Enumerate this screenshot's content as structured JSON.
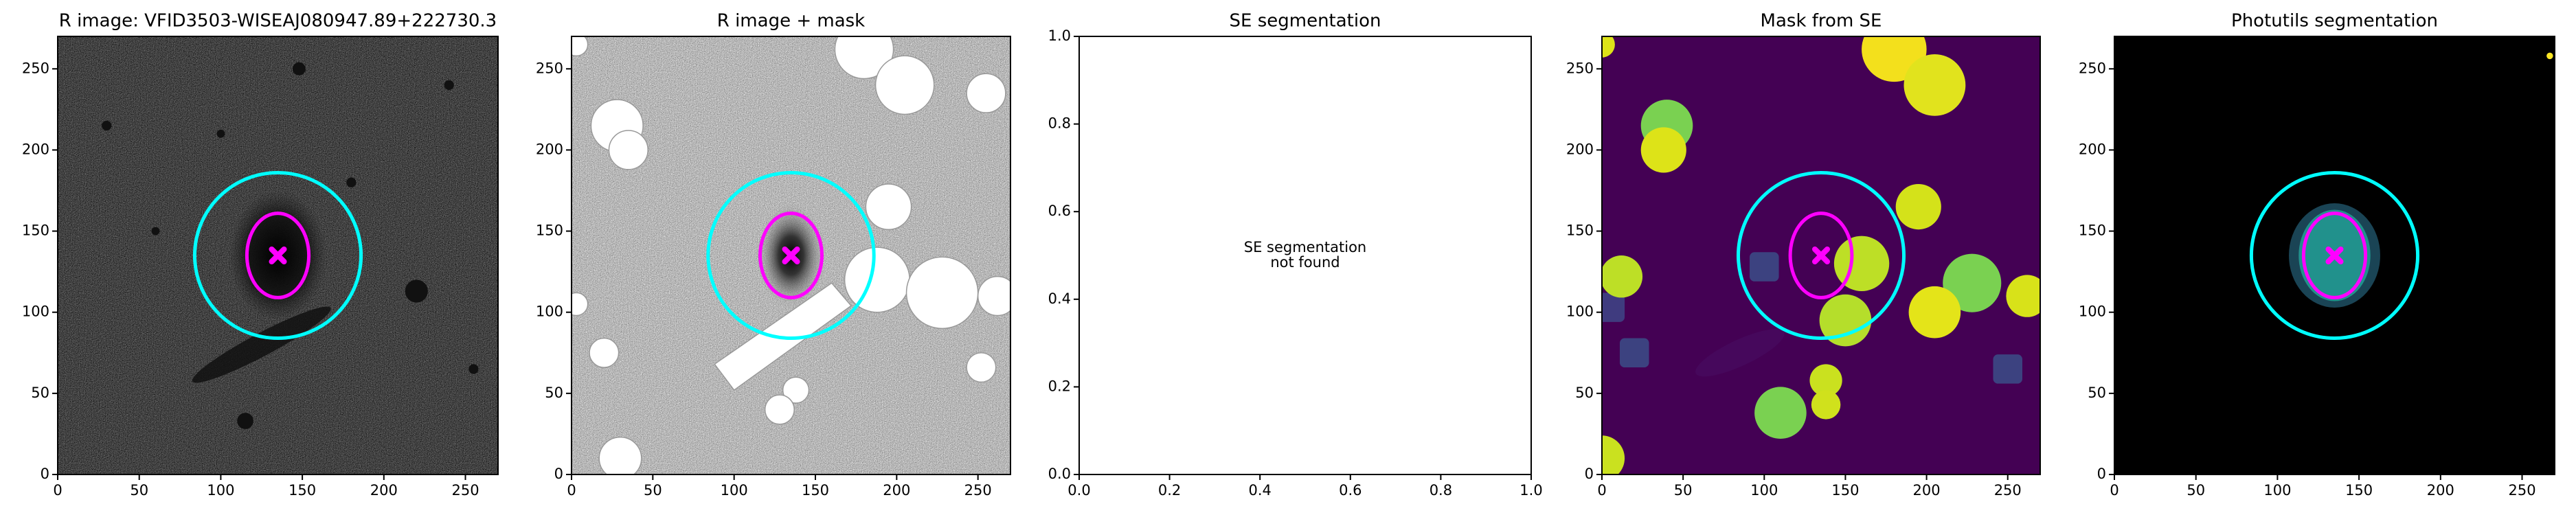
{
  "chart_data": [
    {
      "type": "image",
      "cmap": "gray",
      "title": "R image: VFID3503-WISEAJ080947.89+222730.3",
      "xlim": [
        0,
        270
      ],
      "ylim": [
        0,
        270
      ],
      "xticks": [
        0,
        50,
        100,
        150,
        200,
        250
      ],
      "yticks": [
        0,
        50,
        100,
        150,
        200,
        250
      ],
      "center": [
        135,
        135
      ],
      "circle_radius": 51,
      "ellipse_axes": [
        19,
        26
      ],
      "circle_color": "#00ffff",
      "ellipse_color": "#ff00ff"
    },
    {
      "type": "image",
      "cmap": "gray_r",
      "title": "R image + mask",
      "xlim": [
        0,
        270
      ],
      "ylim": [
        0,
        270
      ],
      "xticks": [
        0,
        50,
        100,
        150,
        200,
        250
      ],
      "yticks": [
        0,
        50,
        100,
        150,
        200,
        250
      ],
      "center": [
        135,
        135
      ],
      "circle_radius": 51,
      "ellipse_axes": [
        19,
        26
      ],
      "circle_color": "#00ffff",
      "ellipse_color": "#ff00ff"
    },
    {
      "type": "empty",
      "title": "SE segmentation",
      "annotation": [
        "SE segmentation",
        "not found"
      ],
      "xlim": [
        0,
        1
      ],
      "ylim": [
        0,
        1
      ],
      "xticks": [
        {
          "value": 0,
          "label": "0.0"
        },
        {
          "value": 0.2,
          "label": "0.2"
        },
        {
          "value": 0.4,
          "label": "0.4"
        },
        {
          "value": 0.6,
          "label": "0.6"
        },
        {
          "value": 0.8,
          "label": "0.8"
        },
        {
          "value": 1,
          "label": "1.0"
        }
      ],
      "yticks": [
        {
          "value": 0,
          "label": "0.0"
        },
        {
          "value": 0.2,
          "label": "0.2"
        },
        {
          "value": 0.4,
          "label": "0.4"
        },
        {
          "value": 0.6,
          "label": "0.6"
        },
        {
          "value": 0.8,
          "label": "0.8"
        },
        {
          "value": 1,
          "label": "1.0"
        }
      ]
    },
    {
      "type": "image",
      "cmap": "viridis",
      "title": "Mask from SE",
      "xlim": [
        0,
        270
      ],
      "ylim": [
        0,
        270
      ],
      "xticks": [
        0,
        50,
        100,
        150,
        200,
        250
      ],
      "yticks": [
        0,
        50,
        100,
        150,
        200,
        250
      ],
      "center": [
        135,
        135
      ],
      "circle_radius": 51,
      "ellipse_axes": [
        19,
        26
      ],
      "circle_color": "#00ffff",
      "ellipse_color": "#ff00ff"
    },
    {
      "type": "image",
      "cmap": "segmentation",
      "title": "Photutils segmentation",
      "xlim": [
        0,
        270
      ],
      "ylim": [
        0,
        270
      ],
      "xticks": [
        0,
        50,
        100,
        150,
        200,
        250
      ],
      "yticks": [
        0,
        50,
        100,
        150,
        200,
        250
      ],
      "center": [
        135,
        135
      ],
      "circle_radius": 51,
      "ellipse_axes": [
        19,
        26
      ],
      "circle_color": "#00ffff",
      "ellipse_color": "#ff00ff"
    }
  ]
}
